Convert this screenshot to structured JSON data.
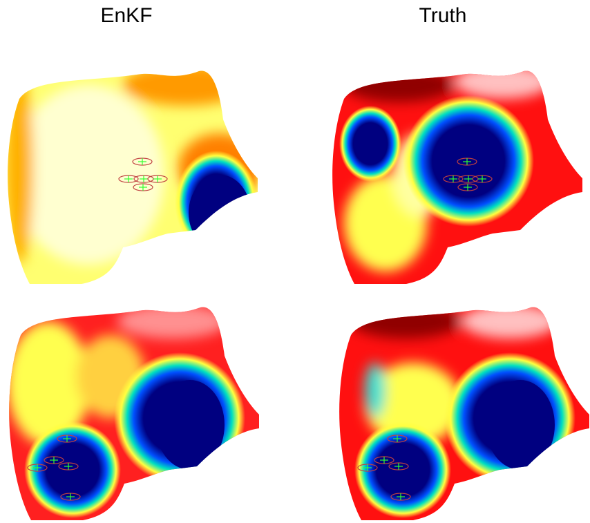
{
  "columns": [
    {
      "title": "EnKF"
    },
    {
      "title": "Truth"
    }
  ]
}
